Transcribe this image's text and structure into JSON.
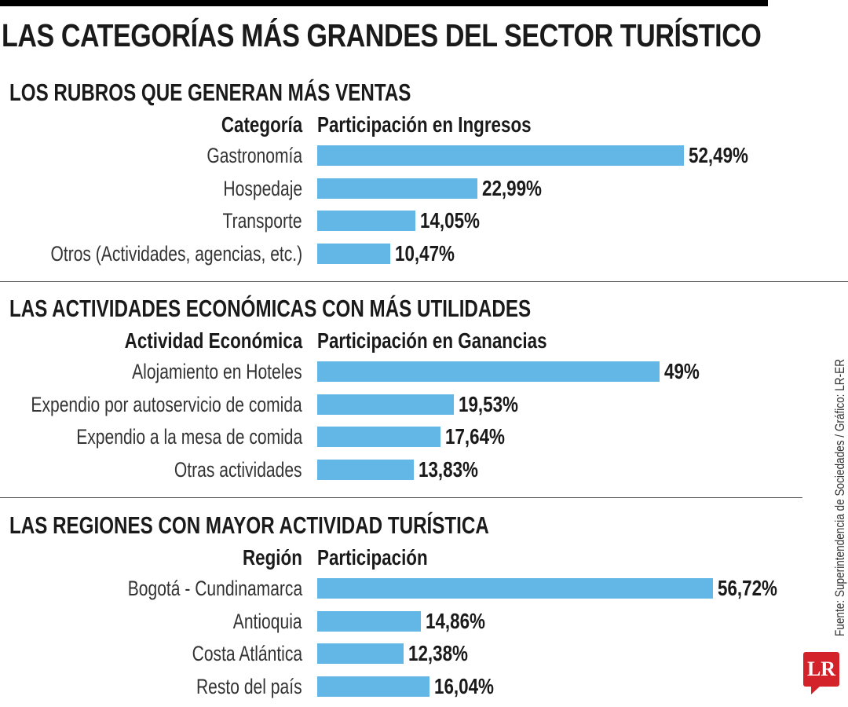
{
  "title": "LAS CATEGORÍAS MÁS GRANDES DEL SECTOR TURÍSTICO",
  "source": "Fuente: Superintendencia de Sociedades / Gráfico: LR-ER",
  "logo_text": "LR",
  "colors": {
    "bar": "#62b7e7",
    "logo": "#d3222a"
  },
  "chart_data": [
    {
      "type": "bar",
      "orientation": "horizontal",
      "title": "LOS RUBROS QUE GENERAN MÁS VENTAS",
      "category_header": "Categoría",
      "value_header": "Participación en Ingresos",
      "categories": [
        "Gastronomía",
        "Hospedaje",
        "Transporte",
        "Otros (Actividades, agencias, etc.)"
      ],
      "values": [
        52.49,
        22.99,
        14.05,
        10.47
      ],
      "labels": [
        "52,49%",
        "22,99%",
        "14,05%",
        "10,47%"
      ]
    },
    {
      "type": "bar",
      "orientation": "horizontal",
      "title": "LAS ACTIVIDADES ECONÓMICAS CON MÁS UTILIDADES",
      "category_header": "Actividad Económica",
      "value_header": "Participación en Ganancias",
      "categories": [
        "Alojamiento en Hoteles",
        "Expendio por autoservicio de comida",
        "Expendio a la mesa de comida",
        "Otras actividades"
      ],
      "values": [
        49,
        19.53,
        17.64,
        13.83
      ],
      "labels": [
        "49%",
        "19,53%",
        "17,64%",
        "13,83%"
      ]
    },
    {
      "type": "bar",
      "orientation": "horizontal",
      "title": "LAS REGIONES CON MAYOR ACTIVIDAD TURÍSTICA",
      "category_header": "Región",
      "value_header": "Participación",
      "categories": [
        "Bogotá - Cundinamarca",
        "Antioquia",
        "Costa Atlántica",
        "Resto del país"
      ],
      "values": [
        56.72,
        14.86,
        12.38,
        16.04
      ],
      "labels": [
        "56,72%",
        "14,86%",
        "12,38%",
        "16,04%"
      ]
    }
  ]
}
